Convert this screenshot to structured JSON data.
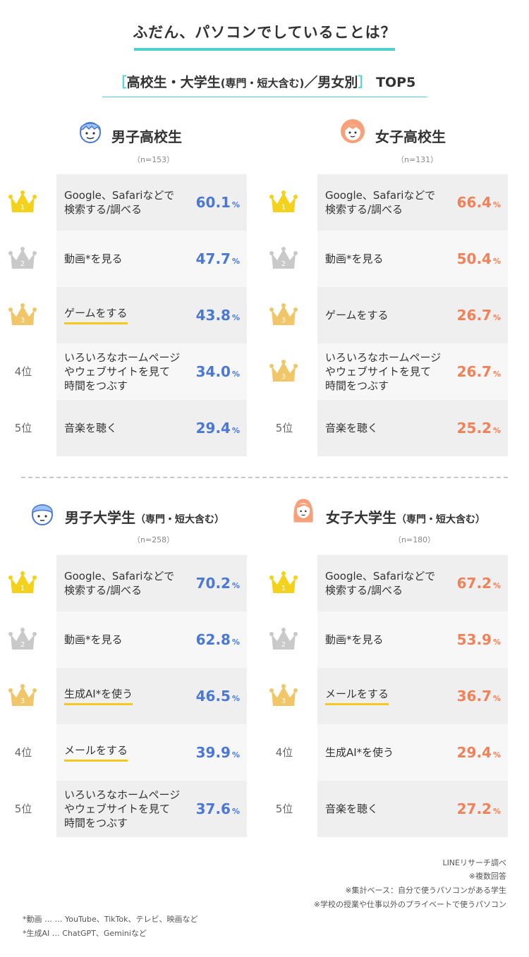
{
  "title": "ふだん、パソコンでしていることは？",
  "subtitle": {
    "open_bracket": "［",
    "main": "高校生・大学生",
    "small": "(専門・短大含む)",
    "rest": "／男女別",
    "close_bracket": "］",
    "tail": "TOP5"
  },
  "rank_labels": {
    "r4": "4位",
    "r5": "5位"
  },
  "unit": "%",
  "colors": {
    "accent": "#4fd0d3",
    "male": "#4a78d4",
    "female": "#f28157",
    "gold": "#f4d21c",
    "silver": "#c9c9c9",
    "bronze": "#f0c669",
    "highlight": "#f4c81e"
  },
  "chart_data": [
    {
      "type": "bar",
      "group": "男子高校生",
      "n": "（n=153）",
      "categories": [
        "Google、Safariなどで検索する/調べる",
        "動画*を見る",
        "ゲームをする",
        "いろいろなホームページやウェブサイトを見て時間をつぶす",
        "音楽を聴く"
      ],
      "values": [
        60.1,
        47.7,
        43.8,
        34.0,
        29.4
      ],
      "ranks": [
        1,
        2,
        3,
        4,
        5
      ]
    },
    {
      "type": "bar",
      "group": "女子高校生",
      "n": "（n=131）",
      "categories": [
        "Google、Safariなどで検索する/調べる",
        "動画*を見る",
        "ゲームをする",
        "いろいろなホームページやウェブサイトを見て時間をつぶす",
        "音楽を聴く"
      ],
      "values": [
        66.4,
        50.4,
        26.7,
        26.7,
        25.2
      ],
      "ranks": [
        1,
        2,
        3,
        3,
        5
      ]
    },
    {
      "type": "bar",
      "group": "男子大学生",
      "group_note": "（専門・短大含む）",
      "n": "（n=258）",
      "categories": [
        "Google、Safariなどで検索する/調べる",
        "動画*を見る",
        "生成AI*を使う",
        "メールをする",
        "いろいろなホームページやウェブサイトを見て時間をつぶす"
      ],
      "values": [
        70.2,
        62.8,
        46.5,
        39.9,
        37.6
      ],
      "ranks": [
        1,
        2,
        3,
        4,
        5
      ]
    },
    {
      "type": "bar",
      "group": "女子大学生",
      "group_note": "（専門・短大含む）",
      "n": "（n=180）",
      "categories": [
        "Google、Safariなどで検索する/調べる",
        "動画*を見る",
        "メールをする",
        "生成AI*を使う",
        "音楽を聴く"
      ],
      "values": [
        67.2,
        53.9,
        36.7,
        29.4,
        27.2
      ],
      "ranks": [
        1,
        2,
        3,
        4,
        5
      ]
    }
  ],
  "panels": [
    {
      "items": [
        [
          "Google、Safariなどで",
          "検索する/調べる"
        ],
        [
          "動画*を見る"
        ],
        [
          "ゲームをする"
        ],
        [
          "いろいろなホームページ",
          "やウェブサイトを見て",
          "時間をつぶす"
        ],
        [
          "音楽を聴く"
        ]
      ],
      "values": [
        "60.1",
        "47.7",
        "43.8",
        "34.0",
        "29.4"
      ],
      "highlight": [
        false,
        false,
        true,
        false,
        false
      ]
    },
    {
      "items": [
        [
          "Google、Safariなどで",
          "検索する/調べる"
        ],
        [
          "動画*を見る"
        ],
        [
          "ゲームをする"
        ],
        [
          "いろいろなホームページ",
          "やウェブサイトを見て",
          "時間をつぶす"
        ],
        [
          "音楽を聴く"
        ]
      ],
      "values": [
        "66.4",
        "50.4",
        "26.7",
        "26.7",
        "25.2"
      ],
      "highlight": [
        false,
        false,
        false,
        false,
        false
      ]
    },
    {
      "items": [
        [
          "Google、Safariなどで",
          "検索する/調べる"
        ],
        [
          "動画*を見る"
        ],
        [
          "生成AI*を使う"
        ],
        [
          "メールをする"
        ],
        [
          "いろいろなホームページ",
          "やウェブサイトを見て",
          "時間をつぶす"
        ]
      ],
      "values": [
        "70.2",
        "62.8",
        "46.5",
        "39.9",
        "37.6"
      ],
      "highlight": [
        false,
        false,
        true,
        true,
        false
      ]
    },
    {
      "items": [
        [
          "Google、Safariなどで",
          "検索する/調べる"
        ],
        [
          "動画*を見る"
        ],
        [
          "メールをする"
        ],
        [
          "生成AI*を使う"
        ],
        [
          "音楽を聴く"
        ]
      ],
      "values": [
        "67.2",
        "53.9",
        "36.7",
        "29.4",
        "27.2"
      ],
      "highlight": [
        false,
        false,
        true,
        false,
        false
      ]
    }
  ],
  "footer": {
    "source": "LINEリサーチ調べ",
    "note1": "※複数回答",
    "note2": "※集計ベース：自分で使うパソコンがある学生",
    "note3": "※学校の授業や仕事以外のプライベートで使うパソコン",
    "fn1": "*動画 … … YouTube、TikTok、テレビ、映画など",
    "fn2": "*生成AI … ChatGPT、Geminiなど"
  }
}
